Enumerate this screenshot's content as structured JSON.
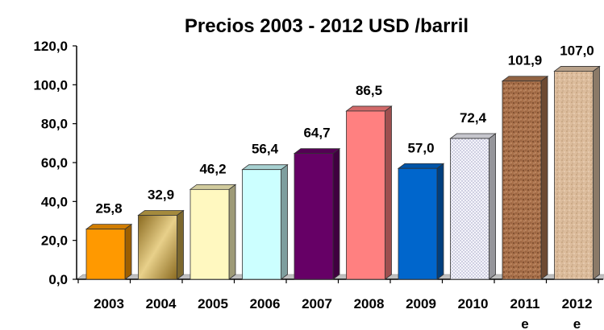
{
  "chart_data": {
    "type": "bar",
    "title": "Precios 2003 - 2012 USD /barril",
    "categories": [
      "2003",
      "2004",
      "2005",
      "2006",
      "2007",
      "2008",
      "2009",
      "2010",
      "2011",
      "2012"
    ],
    "category_suffix": [
      "",
      "",
      "",
      "",
      "",
      "",
      "",
      "",
      "e",
      "e"
    ],
    "values": [
      25.8,
      32.9,
      46.2,
      56.4,
      64.7,
      86.5,
      57.0,
      72.4,
      101.9,
      107.0
    ],
    "value_labels": [
      "25,8",
      "32,9",
      "46,2",
      "56,4",
      "64,7",
      "86,5",
      "57,0",
      "72,4",
      "101,9",
      "107,0"
    ],
    "yticks": [
      "0,0",
      "20,0",
      "40,0",
      "60,0",
      "80,0",
      "100,0",
      "120,0"
    ],
    "ylim": [
      0,
      120
    ],
    "xlabel": "",
    "ylabel": "",
    "legend": "none",
    "grid": false,
    "style": "3d-bars",
    "bar_colors": [
      "#ff9900",
      "#c8a84a",
      "#fff8c0",
      "#ccffff",
      "#660066",
      "#ff8080",
      "#0066cc",
      "#f2f2fa",
      "#b07850",
      "#e0c4a8"
    ]
  }
}
